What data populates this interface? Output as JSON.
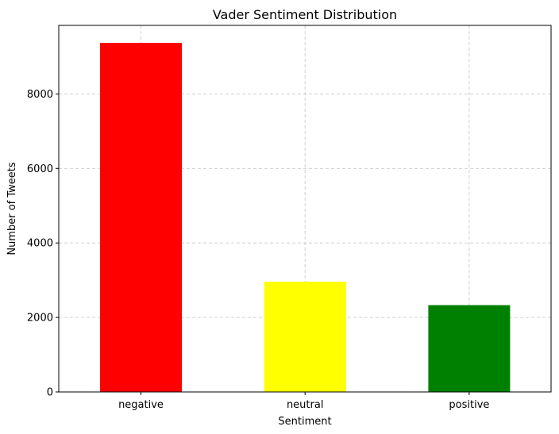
{
  "chart_data": {
    "type": "bar",
    "title": "Vader Sentiment Distribution",
    "xlabel": "Sentiment",
    "ylabel": "Number of Tweets",
    "categories": [
      "negative",
      "neutral",
      "positive"
    ],
    "values": [
      9370,
      2960,
      2330
    ],
    "colors": [
      "#ff0000",
      "#ffff00",
      "#008000"
    ],
    "ylim": [
      0,
      9840
    ],
    "yticks": [
      0,
      2000,
      4000,
      6000,
      8000
    ],
    "grid": true
  }
}
